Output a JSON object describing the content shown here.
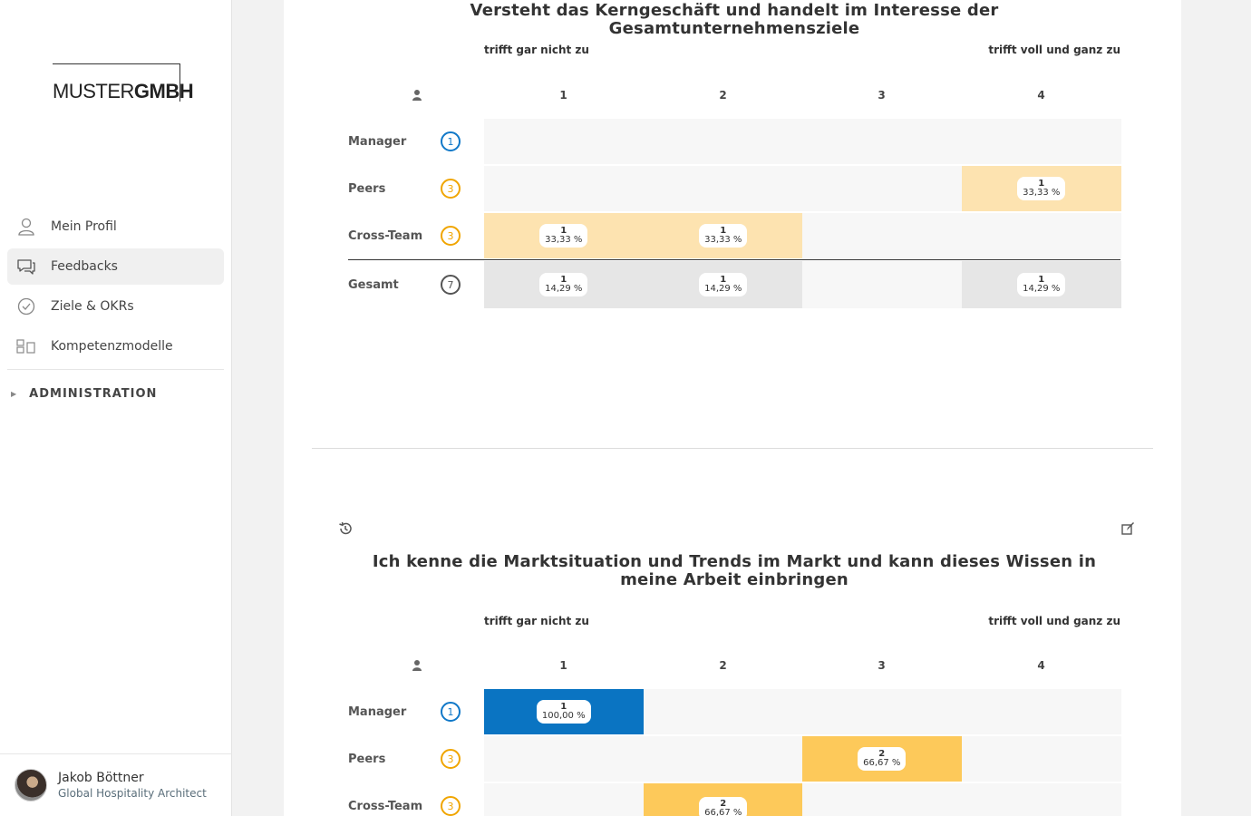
{
  "sidebar": {
    "logo": {
      "thin": "MUSTER",
      "bold": "GMBH"
    },
    "nav": [
      {
        "label": "Mein Profil",
        "icon": "user-icon"
      },
      {
        "label": "Feedbacks",
        "icon": "chat-icon",
        "active": true
      },
      {
        "label": "Ziele & OKRs",
        "icon": "check-circle-icon"
      },
      {
        "label": "Kompetenzmodelle",
        "icon": "blocks-icon"
      }
    ],
    "admin_label": "ADMINISTRATION",
    "user": {
      "name": "Jakob Böttner",
      "role": "Global Hospitality Architect"
    }
  },
  "colors": {
    "manager": "#1078c8",
    "peers": "#f0a500",
    "crossteam": "#f0a500",
    "total": "#555555",
    "heat_light": "#fde3b0",
    "heat_medium": "#fdc95a",
    "heat_blue": "#0a74c2",
    "total_fill": "#e6e6e6",
    "empty": "#f7f7f7"
  },
  "questions": [
    {
      "title": "Versteht das Kerngeschäft und handelt im Interesse der Gesamtunternehmensziele",
      "scale_low": "trifft gar nicht zu",
      "scale_high": "trifft voll und ganz zu",
      "columns": [
        "1",
        "2",
        "3",
        "4"
      ],
      "rows": [
        {
          "label": "Manager",
          "count": "1",
          "cells": [
            null,
            null,
            null,
            null
          ]
        },
        {
          "label": "Peers",
          "count": "3",
          "cells": [
            null,
            null,
            null,
            {
              "n": "1",
              "p": "33,33 %"
            }
          ]
        },
        {
          "label": "Cross-Team",
          "count": "3",
          "cells": [
            {
              "n": "1",
              "p": "33,33 %"
            },
            {
              "n": "1",
              "p": "33,33 %"
            },
            null,
            null
          ]
        }
      ],
      "total": {
        "label": "Gesamt",
        "count": "7",
        "cells": [
          {
            "n": "1",
            "p": "14,29 %"
          },
          {
            "n": "1",
            "p": "14,29 %"
          },
          null,
          {
            "n": "1",
            "p": "14,29 %"
          }
        ]
      }
    },
    {
      "title": "Ich kenne die Marktsituation und Trends im Markt und kann dieses Wissen in meine Arbeit einbringen",
      "scale_low": "trifft gar nicht zu",
      "scale_high": "trifft voll und ganz zu",
      "columns": [
        "1",
        "2",
        "3",
        "4"
      ],
      "rows": [
        {
          "label": "Manager",
          "count": "1",
          "cells": [
            {
              "n": "1",
              "p": "100,00 %"
            },
            null,
            null,
            null
          ]
        },
        {
          "label": "Peers",
          "count": "3",
          "cells": [
            null,
            null,
            {
              "n": "2",
              "p": "66,67 %"
            },
            null
          ]
        },
        {
          "label": "Cross-Team",
          "count": "3",
          "cells": [
            null,
            {
              "n": "2",
              "p": "66,67 %"
            },
            null,
            null
          ]
        }
      ]
    }
  ]
}
